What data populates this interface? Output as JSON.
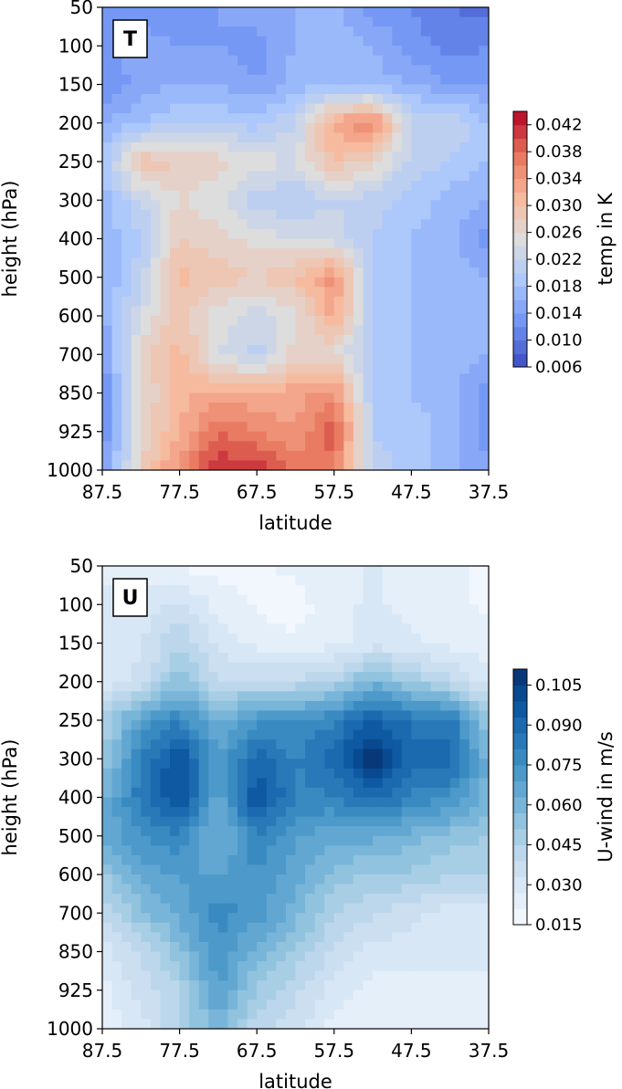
{
  "chart_data": [
    {
      "type": "heatmap",
      "panel_label": "T",
      "xlabel": "latitude",
      "ylabel": "height (hPa)",
      "colorbar_label": "temp in K",
      "x_ticks": [
        "87.5",
        "77.5",
        "67.5",
        "57.5",
        "47.5",
        "37.5"
      ],
      "y_ticks": [
        "50",
        "100",
        "150",
        "200",
        "250",
        "300",
        "400",
        "500",
        "600",
        "700",
        "850",
        "925",
        "1000"
      ],
      "colorbar_ticks": [
        "0.006",
        "0.010",
        "0.014",
        "0.018",
        "0.022",
        "0.026",
        "0.030",
        "0.034",
        "0.038",
        "0.042"
      ],
      "colorbar_range": [
        0.006,
        0.044
      ],
      "colormap": "coolwarm",
      "colormap_stops": [
        "#3b4cc0",
        "#6f92f3",
        "#aac7fd",
        "#dddddd",
        "#f7b89c",
        "#e7745b",
        "#b40426"
      ],
      "x": [
        87.5,
        82.5,
        77.5,
        72.5,
        67.5,
        62.5,
        57.5,
        52.5,
        47.5,
        42.5,
        37.5
      ],
      "y": [
        50,
        100,
        150,
        200,
        250,
        300,
        400,
        500,
        600,
        700,
        850,
        925,
        1000
      ],
      "z": [
        [
          0.014,
          0.013,
          0.012,
          0.014,
          0.015,
          0.016,
          0.017,
          0.013,
          0.012,
          0.01,
          0.009
        ],
        [
          0.013,
          0.015,
          0.014,
          0.014,
          0.013,
          0.016,
          0.017,
          0.016,
          0.013,
          0.011,
          0.012
        ],
        [
          0.012,
          0.015,
          0.016,
          0.016,
          0.014,
          0.017,
          0.018,
          0.017,
          0.016,
          0.014,
          0.014
        ],
        [
          0.016,
          0.018,
          0.02,
          0.02,
          0.019,
          0.022,
          0.033,
          0.036,
          0.022,
          0.022,
          0.018
        ],
        [
          0.018,
          0.03,
          0.028,
          0.027,
          0.025,
          0.024,
          0.03,
          0.027,
          0.021,
          0.02,
          0.018
        ],
        [
          0.017,
          0.022,
          0.026,
          0.024,
          0.021,
          0.02,
          0.022,
          0.021,
          0.019,
          0.017,
          0.016
        ],
        [
          0.016,
          0.02,
          0.028,
          0.027,
          0.025,
          0.024,
          0.023,
          0.02,
          0.018,
          0.017,
          0.013
        ],
        [
          0.016,
          0.021,
          0.031,
          0.029,
          0.028,
          0.03,
          0.035,
          0.019,
          0.018,
          0.017,
          0.016
        ],
        [
          0.015,
          0.024,
          0.029,
          0.025,
          0.023,
          0.025,
          0.033,
          0.02,
          0.018,
          0.017,
          0.016
        ],
        [
          0.014,
          0.027,
          0.031,
          0.024,
          0.021,
          0.027,
          0.026,
          0.019,
          0.018,
          0.017,
          0.016
        ],
        [
          0.011,
          0.026,
          0.031,
          0.033,
          0.032,
          0.033,
          0.035,
          0.02,
          0.018,
          0.017,
          0.013
        ],
        [
          0.012,
          0.026,
          0.032,
          0.038,
          0.036,
          0.034,
          0.04,
          0.02,
          0.019,
          0.017,
          0.013
        ],
        [
          0.013,
          0.028,
          0.035,
          0.042,
          0.041,
          0.038,
          0.037,
          0.021,
          0.019,
          0.017,
          0.014
        ]
      ]
    },
    {
      "type": "heatmap",
      "panel_label": "U",
      "xlabel": "latitude",
      "ylabel": "height (hPa)",
      "colorbar_label": "U-wind in m/s",
      "x_ticks": [
        "87.5",
        "77.5",
        "67.5",
        "57.5",
        "47.5",
        "37.5"
      ],
      "y_ticks": [
        "50",
        "100",
        "150",
        "200",
        "250",
        "300",
        "400",
        "500",
        "600",
        "700",
        "850",
        "925",
        "1000"
      ],
      "colorbar_ticks": [
        "0.015",
        "0.030",
        "0.045",
        "0.060",
        "0.075",
        "0.090",
        "0.105"
      ],
      "colorbar_range": [
        0.015,
        0.111
      ],
      "colormap": "Blues",
      "colormap_stops": [
        "#f7fbff",
        "#deebf7",
        "#c6dbef",
        "#9ecae1",
        "#6baed6",
        "#4292c6",
        "#2171b5",
        "#08519c",
        "#08306b"
      ],
      "x": [
        87.5,
        82.5,
        77.5,
        72.5,
        67.5,
        62.5,
        57.5,
        52.5,
        47.5,
        42.5,
        37.5
      ],
      "y": [
        50,
        100,
        150,
        200,
        250,
        300,
        400,
        500,
        600,
        700,
        850,
        925,
        1000
      ],
      "z": [
        [
          0.025,
          0.025,
          0.02,
          0.018,
          0.02,
          0.023,
          0.025,
          0.028,
          0.025,
          0.022,
          0.02
        ],
        [
          0.028,
          0.03,
          0.035,
          0.025,
          0.02,
          0.018,
          0.025,
          0.028,
          0.025,
          0.022,
          0.02
        ],
        [
          0.03,
          0.032,
          0.045,
          0.03,
          0.025,
          0.022,
          0.025,
          0.03,
          0.028,
          0.025,
          0.022
        ],
        [
          0.03,
          0.035,
          0.055,
          0.04,
          0.04,
          0.04,
          0.045,
          0.06,
          0.05,
          0.04,
          0.03
        ],
        [
          0.045,
          0.07,
          0.08,
          0.06,
          0.075,
          0.075,
          0.08,
          0.095,
          0.085,
          0.085,
          0.05
        ],
        [
          0.05,
          0.08,
          0.1,
          0.07,
          0.09,
          0.08,
          0.09,
          0.11,
          0.09,
          0.09,
          0.06
        ],
        [
          0.06,
          0.085,
          0.1,
          0.065,
          0.1,
          0.08,
          0.08,
          0.09,
          0.08,
          0.075,
          0.06
        ],
        [
          0.065,
          0.075,
          0.08,
          0.06,
          0.08,
          0.07,
          0.065,
          0.065,
          0.06,
          0.055,
          0.05
        ],
        [
          0.05,
          0.065,
          0.07,
          0.068,
          0.075,
          0.065,
          0.055,
          0.05,
          0.05,
          0.045,
          0.045
        ],
        [
          0.04,
          0.055,
          0.065,
          0.078,
          0.072,
          0.06,
          0.045,
          0.04,
          0.035,
          0.03,
          0.03
        ],
        [
          0.03,
          0.04,
          0.055,
          0.075,
          0.06,
          0.05,
          0.038,
          0.03,
          0.03,
          0.03,
          0.03
        ],
        [
          0.025,
          0.035,
          0.045,
          0.07,
          0.05,
          0.04,
          0.03,
          0.025,
          0.025,
          0.025,
          0.025
        ],
        [
          0.022,
          0.03,
          0.045,
          0.06,
          0.04,
          0.035,
          0.025,
          0.022,
          0.022,
          0.022,
          0.022
        ]
      ]
    }
  ]
}
